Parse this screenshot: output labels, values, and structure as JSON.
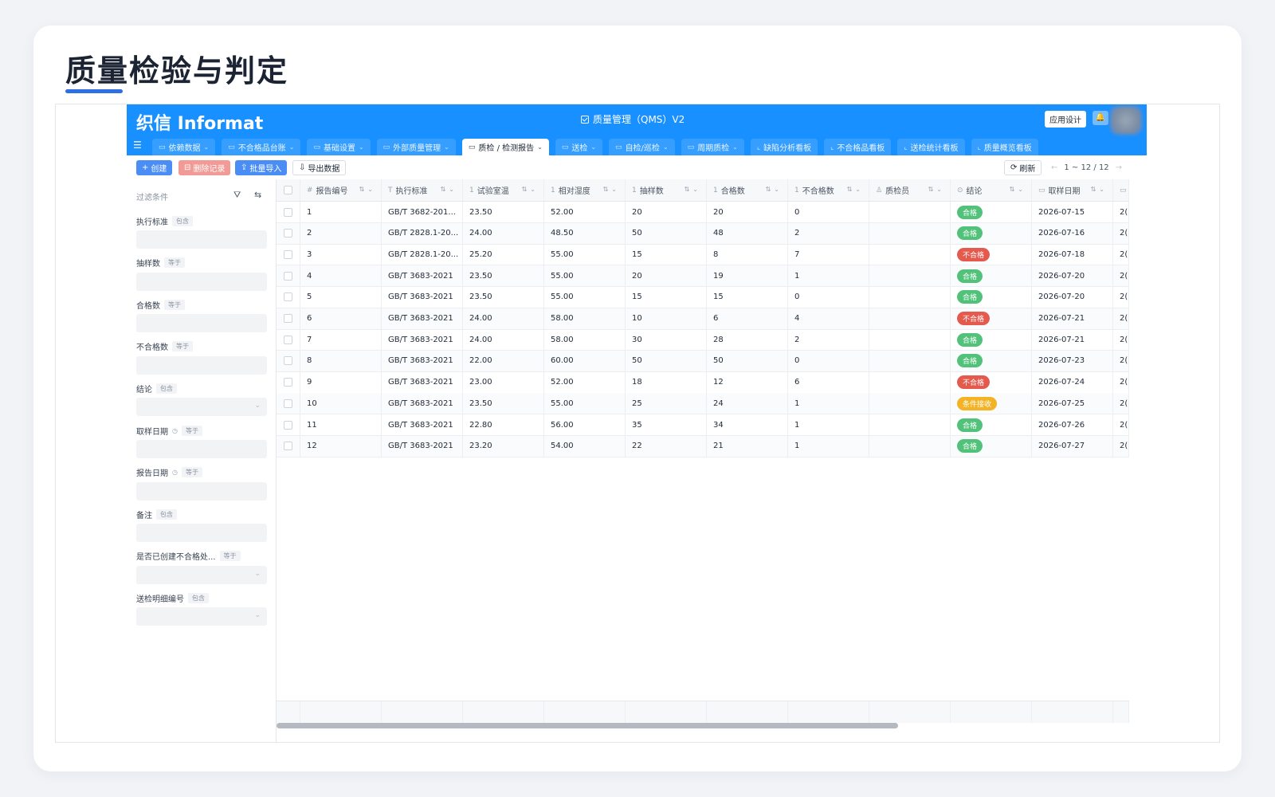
{
  "page": {
    "title": "质量检验与判定"
  },
  "app": {
    "logo": "织信 Informat",
    "title": "质量管理（QMS）V2",
    "design_button": "应用设计",
    "bell": "🔔"
  },
  "tabs": [
    {
      "label": "依赖数据",
      "has_dropdown": true,
      "icon": "folder",
      "active": false
    },
    {
      "label": "不合格品台账",
      "has_dropdown": true,
      "icon": "folder",
      "active": false
    },
    {
      "label": "基础设置",
      "has_dropdown": true,
      "icon": "folder",
      "active": false
    },
    {
      "label": "外部质量管理",
      "has_dropdown": true,
      "icon": "folder",
      "active": false
    },
    {
      "label": "质检 / 检测报告",
      "has_dropdown": true,
      "icon": "folder",
      "active": true
    },
    {
      "label": "送检",
      "has_dropdown": true,
      "icon": "folder",
      "active": false
    },
    {
      "label": "自检/巡检",
      "has_dropdown": true,
      "icon": "folder",
      "active": false
    },
    {
      "label": "周期质检",
      "has_dropdown": true,
      "icon": "folder",
      "active": false
    },
    {
      "label": "缺陷分析看板",
      "has_dropdown": false,
      "icon": "chart",
      "active": false
    },
    {
      "label": "不合格品看板",
      "has_dropdown": false,
      "icon": "chart",
      "active": false
    },
    {
      "label": "送检统计看板",
      "has_dropdown": false,
      "icon": "chart",
      "active": false
    },
    {
      "label": "质量概览看板",
      "has_dropdown": false,
      "icon": "chart",
      "active": false
    }
  ],
  "toolbar": {
    "create": "创建",
    "delete": "删除记录",
    "import": "批量导入",
    "export": "导出数据",
    "refresh": "刷新",
    "pager": "1 ~ 12 / 12"
  },
  "filter": {
    "title": "过滤条件",
    "fields": [
      {
        "label": "执行标准",
        "op": "包含",
        "kind": "input",
        "clock": false
      },
      {
        "label": "抽样数",
        "op": "等于",
        "kind": "input",
        "clock": false
      },
      {
        "label": "合格数",
        "op": "等于",
        "kind": "input",
        "clock": false
      },
      {
        "label": "不合格数",
        "op": "等于",
        "kind": "input",
        "clock": false
      },
      {
        "label": "结论",
        "op": "包含",
        "kind": "select",
        "clock": false
      },
      {
        "label": "取样日期",
        "op": "等于",
        "kind": "input",
        "clock": true
      },
      {
        "label": "报告日期",
        "op": "等于",
        "kind": "input",
        "clock": true
      },
      {
        "label": "备注",
        "op": "包含",
        "kind": "input",
        "clock": false
      },
      {
        "label": "是否已创建不合格处...",
        "op": "等于",
        "kind": "select",
        "clock": false
      },
      {
        "label": "送检明细编号",
        "op": "包含",
        "kind": "select",
        "clock": false
      }
    ]
  },
  "table": {
    "columns": [
      {
        "label": "报告编号",
        "type_icon": "#"
      },
      {
        "label": "执行标准",
        "type_icon": "T"
      },
      {
        "label": "试验室温",
        "type_icon": "1"
      },
      {
        "label": "相对湿度",
        "type_icon": "1"
      },
      {
        "label": "抽样数",
        "type_icon": "1"
      },
      {
        "label": "合格数",
        "type_icon": "1"
      },
      {
        "label": "不合格数",
        "type_icon": "1"
      },
      {
        "label": "质检员",
        "type_icon": "user"
      },
      {
        "label": "结论",
        "type_icon": "check"
      },
      {
        "label": "取样日期",
        "type_icon": "cal"
      }
    ],
    "rows": [
      {
        "id": "1",
        "std": "GB/T 3682-201...",
        "temp": "23.50",
        "hum": "52.00",
        "sample": "20",
        "pass": "20",
        "fail": "0",
        "inspector": "",
        "result": "合格",
        "result_type": "pass",
        "date": "2026-07-15"
      },
      {
        "id": "2",
        "std": "GB/T 2828.1-20...",
        "temp": "24.00",
        "hum": "48.50",
        "sample": "50",
        "pass": "48",
        "fail": "2",
        "inspector": "",
        "result": "合格",
        "result_type": "pass",
        "date": "2026-07-16"
      },
      {
        "id": "3",
        "std": "GB/T 2828.1-20...",
        "temp": "25.20",
        "hum": "55.00",
        "sample": "15",
        "pass": "8",
        "fail": "7",
        "inspector": "",
        "result": "不合格",
        "result_type": "fail",
        "date": "2026-07-18"
      },
      {
        "id": "4",
        "std": "GB/T 3683-2021",
        "temp": "23.50",
        "hum": "55.00",
        "sample": "20",
        "pass": "19",
        "fail": "1",
        "inspector": "",
        "result": "合格",
        "result_type": "pass",
        "date": "2026-07-20"
      },
      {
        "id": "5",
        "std": "GB/T 3683-2021",
        "temp": "23.50",
        "hum": "55.00",
        "sample": "15",
        "pass": "15",
        "fail": "0",
        "inspector": "",
        "result": "合格",
        "result_type": "pass",
        "date": "2026-07-20"
      },
      {
        "id": "6",
        "std": "GB/T 3683-2021",
        "temp": "24.00",
        "hum": "58.00",
        "sample": "10",
        "pass": "6",
        "fail": "4",
        "inspector": "",
        "result": "不合格",
        "result_type": "fail",
        "date": "2026-07-21"
      },
      {
        "id": "7",
        "std": "GB/T 3683-2021",
        "temp": "24.00",
        "hum": "58.00",
        "sample": "30",
        "pass": "28",
        "fail": "2",
        "inspector": "",
        "result": "合格",
        "result_type": "pass",
        "date": "2026-07-21"
      },
      {
        "id": "8",
        "std": "GB/T 3683-2021",
        "temp": "22.00",
        "hum": "60.00",
        "sample": "50",
        "pass": "50",
        "fail": "0",
        "inspector": "",
        "result": "合格",
        "result_type": "pass",
        "date": "2026-07-23"
      },
      {
        "id": "9",
        "std": "GB/T 3683-2021",
        "temp": "23.00",
        "hum": "52.00",
        "sample": "18",
        "pass": "12",
        "fail": "6",
        "inspector": "",
        "result": "不合格",
        "result_type": "fail",
        "date": "2026-07-24"
      },
      {
        "id": "10",
        "std": "GB/T 3683-2021",
        "temp": "23.50",
        "hum": "55.00",
        "sample": "25",
        "pass": "24",
        "fail": "1",
        "inspector": "",
        "result": "条件接收",
        "result_type": "cond",
        "date": "2026-07-25"
      },
      {
        "id": "11",
        "std": "GB/T 3683-2021",
        "temp": "22.80",
        "hum": "56.00",
        "sample": "35",
        "pass": "34",
        "fail": "1",
        "inspector": "",
        "result": "合格",
        "result_type": "pass",
        "date": "2026-07-26"
      },
      {
        "id": "12",
        "std": "GB/T 3683-2021",
        "temp": "23.20",
        "hum": "54.00",
        "sample": "22",
        "pass": "21",
        "fail": "1",
        "inspector": "",
        "result": "合格",
        "result_type": "pass",
        "date": "2026-07-27"
      }
    ]
  },
  "colors": {
    "brand": "#1890ff",
    "title_underline": "#2f6fe4",
    "pass": "#52c27a",
    "fail": "#e55a4e",
    "conditional": "#f4b225"
  }
}
